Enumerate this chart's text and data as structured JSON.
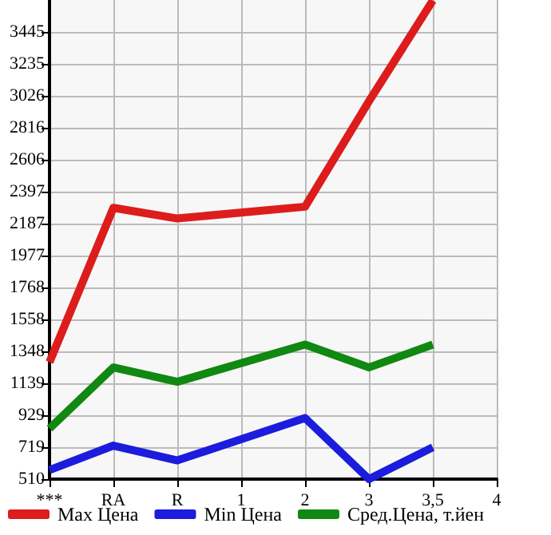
{
  "chart_data": {
    "type": "line",
    "categories": [
      "***",
      "RA",
      "R",
      "1",
      "2",
      "3",
      "3,5",
      "4"
    ],
    "series": [
      {
        "name": "Max Цена",
        "color": "#dd1c1c",
        "values": [
          1278,
          2291,
          2221,
          null,
          2298,
          2990,
          3652,
          null
        ]
      },
      {
        "name": "Min Цена",
        "color": "#1c1cdd",
        "values": [
          570,
          730,
          633,
          null,
          911,
          510,
          719,
          null
        ]
      },
      {
        "name": "Сред.Цена, т.йен",
        "color": "#118811",
        "values": [
          842,
          1243,
          1149,
          null,
          1393,
          1243,
          1393,
          null
        ]
      }
    ],
    "ylim": [
      510,
      3655
    ],
    "yticks": [
      510,
      719,
      929,
      1139,
      1348,
      1558,
      1768,
      1977,
      2187,
      2397,
      2606,
      2816,
      3026,
      3235,
      3445
    ],
    "grid": true,
    "legend": "bottom",
    "marker": "none",
    "line_style": "solid"
  }
}
